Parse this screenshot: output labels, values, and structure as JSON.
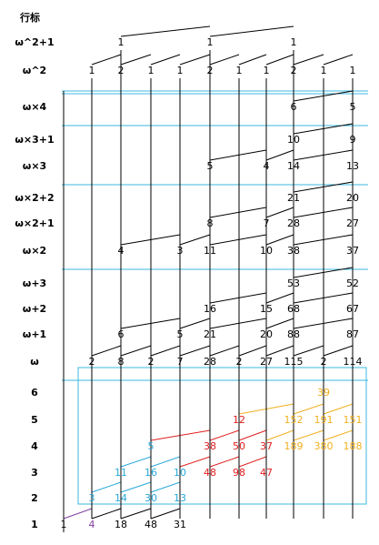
{
  "header": {
    "title": "行标"
  },
  "rows": [
    {
      "label": "ω^2+1",
      "cells": [
        null,
        null,
        "1",
        null,
        null,
        "1",
        null,
        null,
        "1",
        null,
        null
      ]
    },
    {
      "label": "ω^2",
      "cells": [
        null,
        "1",
        "2",
        "1",
        "1",
        "2",
        "1",
        "1",
        "2",
        "1",
        "1"
      ]
    },
    {
      "label": "ω×4",
      "cells": [
        null,
        null,
        null,
        null,
        null,
        null,
        null,
        null,
        "6",
        null,
        "5"
      ]
    },
    {
      "label": "ω×3+1",
      "cells": [
        null,
        null,
        null,
        null,
        null,
        null,
        null,
        null,
        "10",
        null,
        "9"
      ]
    },
    {
      "label": "ω×3",
      "cells": [
        null,
        null,
        null,
        null,
        null,
        "5",
        null,
        "4",
        "14",
        null,
        "13"
      ]
    },
    {
      "label": "ω×2+2",
      "cells": [
        null,
        null,
        null,
        null,
        null,
        null,
        null,
        null,
        "21",
        null,
        "20"
      ]
    },
    {
      "label": "ω×2+1",
      "cells": [
        null,
        null,
        null,
        null,
        null,
        "8",
        null,
        "7",
        "28",
        null,
        "27"
      ]
    },
    {
      "label": "ω×2",
      "cells": [
        null,
        null,
        "4",
        null,
        "3",
        "11",
        null,
        "10",
        "38",
        null,
        "37"
      ]
    },
    {
      "label": "ω+3",
      "cells": [
        null,
        null,
        null,
        null,
        null,
        null,
        null,
        null,
        "53",
        null,
        "52"
      ]
    },
    {
      "label": "ω+2",
      "cells": [
        null,
        null,
        null,
        null,
        null,
        "16",
        null,
        "15",
        "68",
        null,
        "67"
      ]
    },
    {
      "label": "ω+1",
      "cells": [
        null,
        null,
        "6",
        null,
        "5",
        "21",
        null,
        "20",
        "88",
        null,
        "87"
      ]
    },
    {
      "label": "ω",
      "cells": [
        null,
        "2",
        "8",
        "2",
        "7",
        "28",
        "2",
        "27",
        "115",
        "2",
        "114"
      ]
    },
    {
      "label": "6",
      "cells": [
        null,
        null,
        null,
        null,
        null,
        null,
        null,
        null,
        null,
        {
          "text": "39",
          "color": "#f0b020"
        },
        null
      ]
    },
    {
      "label": "5",
      "cells": [
        null,
        null,
        null,
        null,
        null,
        null,
        {
          "text": "12",
          "color": "#e02020"
        },
        null,
        {
          "text": "152",
          "color": "#f0b020"
        },
        {
          "text": "191",
          "color": "#f0b020"
        },
        {
          "text": "151",
          "color": "#f0b020"
        }
      ]
    },
    {
      "label": "4",
      "cells": [
        null,
        null,
        null,
        {
          "text": "5",
          "color": "#29a8d8"
        },
        null,
        {
          "text": "38",
          "color": "#e02020"
        },
        {
          "text": "50",
          "color": "#e02020"
        },
        {
          "text": "37",
          "color": "#e02020"
        },
        {
          "text": "189",
          "color": "#f0b020"
        },
        {
          "text": "380",
          "color": "#f0b020"
        },
        {
          "text": "188",
          "color": "#f0b020"
        }
      ]
    },
    {
      "label": "3",
      "cells": [
        null,
        null,
        {
          "text": "11",
          "color": "#29a8d8"
        },
        {
          "text": "16",
          "color": "#29a8d8"
        },
        {
          "text": "10",
          "color": "#29a8d8"
        },
        {
          "text": "48",
          "color": "#e02020"
        },
        {
          "text": "98",
          "color": "#e02020"
        },
        {
          "text": "47",
          "color": "#e02020"
        },
        null,
        null,
        null
      ]
    },
    {
      "label": "2",
      "cells": [
        null,
        {
          "text": "3",
          "color": "#29a8d8"
        },
        {
          "text": "14",
          "color": "#29a8d8"
        },
        {
          "text": "30",
          "color": "#29a8d8"
        },
        {
          "text": "13",
          "color": "#29a8d8"
        },
        null,
        null,
        null,
        null,
        null,
        null
      ]
    },
    {
      "label": "1",
      "cells": [
        "1",
        {
          "text": "4",
          "color": "#8040a0"
        },
        "18",
        "48",
        "31",
        null,
        null,
        null,
        null,
        null,
        null
      ]
    }
  ]
}
